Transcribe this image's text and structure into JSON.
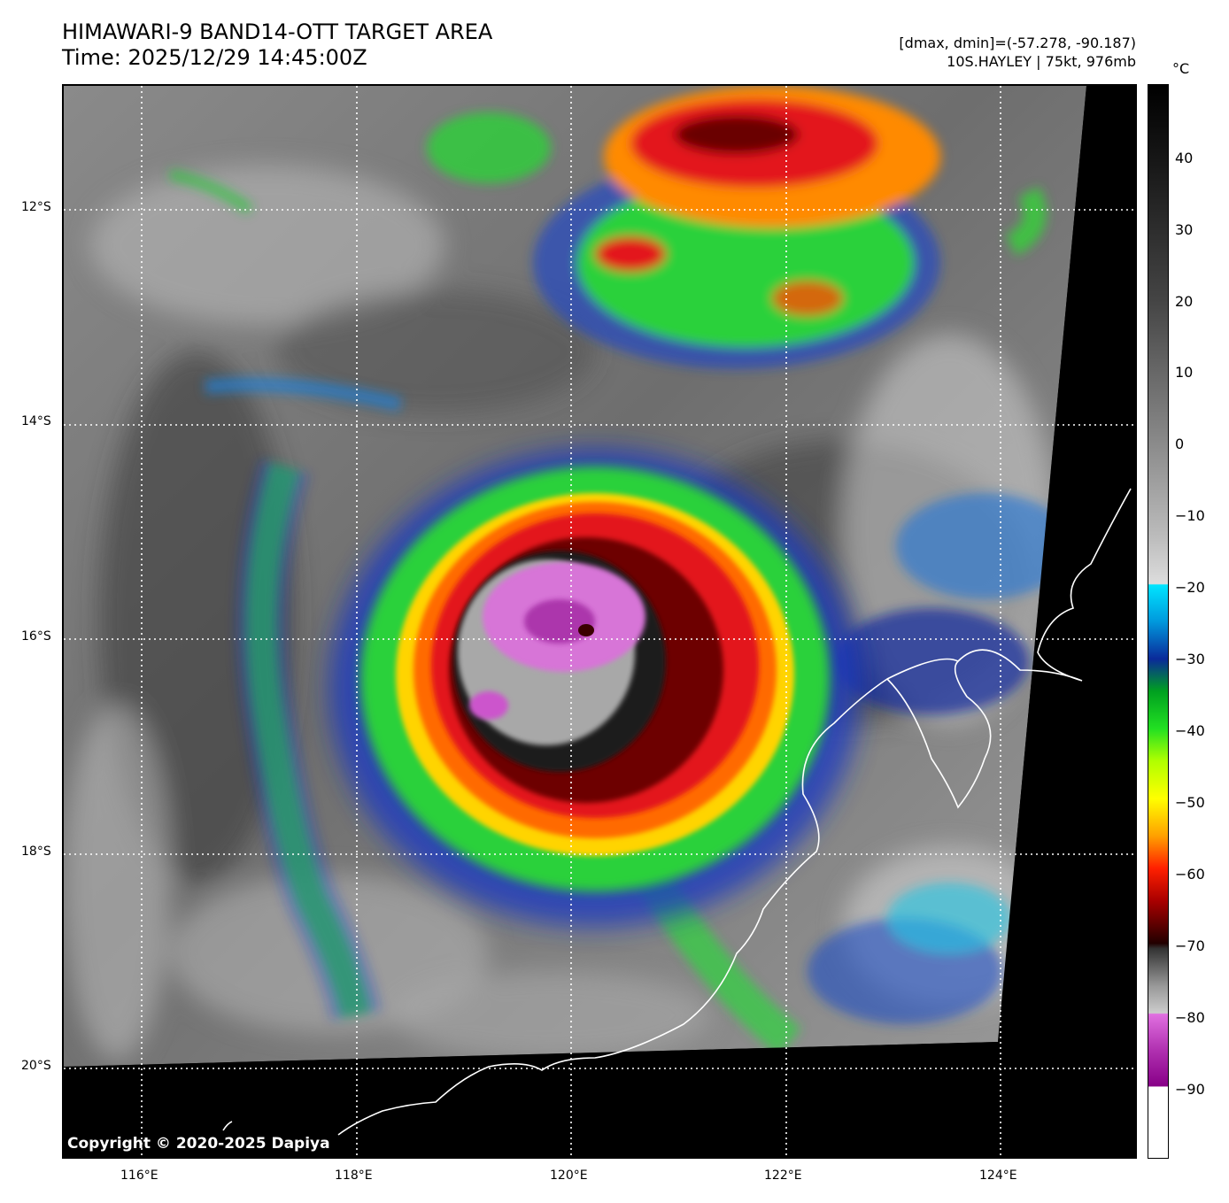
{
  "title": {
    "line1": "HIMAWARI-9 BAND14-OTT TARGET AREA",
    "line2": "Time: 2025/12/29 14:45:00Z"
  },
  "info": {
    "line1": "[dmax, dmin]=(-57.278, -90.187)",
    "line2": "10S.HAYLEY | 75kt, 976mb"
  },
  "colorbar": {
    "unit": "°C",
    "ticks": [
      "40",
      "30",
      "20",
      "10",
      "0",
      "−10",
      "−20",
      "−30",
      "−40",
      "−50",
      "−60",
      "−70",
      "−80",
      "−90"
    ]
  },
  "axes": {
    "lat_labels": [
      "12°S",
      "14°S",
      "16°S",
      "18°S",
      "20°S"
    ],
    "lon_labels": [
      "116°E",
      "118°E",
      "120°E",
      "122°E",
      "124°E"
    ]
  },
  "copyright": "Copyright © 2020-2025 Dapiya"
}
